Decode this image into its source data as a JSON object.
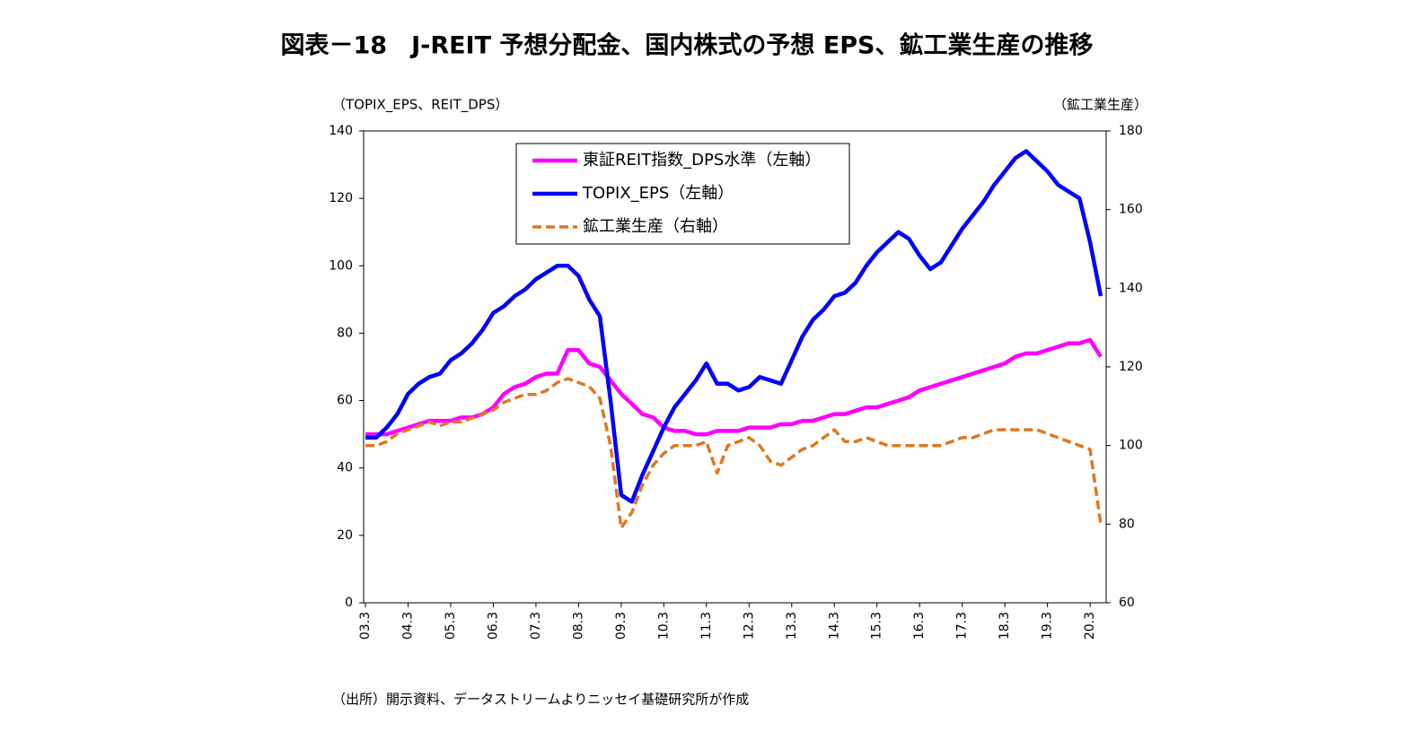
{
  "chart_data": {
    "type": "line",
    "title": "図表－18　J-REIT 予想分配金、国内株式の予想 EPS、鉱工業生産の推移",
    "y_label": "（TOPIX_EPS、REIT_DPS）",
    "y2_label": "（鉱工業生産）",
    "note": "（出所）開示資料、データストリームよりニッセイ基礎研究所が作成",
    "categories": [
      "03.3",
      null,
      null,
      null,
      "04.3",
      null,
      null,
      null,
      "05.3",
      null,
      null,
      null,
      "06.3",
      null,
      null,
      null,
      "07.3",
      null,
      null,
      null,
      "08.3",
      null,
      null,
      null,
      "09.3",
      null,
      null,
      null,
      "10.3",
      null,
      null,
      null,
      "11.3",
      null,
      null,
      null,
      "12.3",
      null,
      null,
      null,
      "13.3",
      null,
      null,
      null,
      "14.3",
      null,
      null,
      null,
      "15.3",
      null,
      null,
      null,
      "16.3",
      null,
      null,
      null,
      "17.3",
      null,
      null,
      null,
      "18.3",
      null,
      null,
      null,
      "19.3",
      null,
      null,
      null,
      "20.3",
      null
    ],
    "ylim": [
      0,
      140
    ],
    "yticks": [
      0,
      20,
      40,
      60,
      80,
      100,
      120,
      140
    ],
    "y2lim": [
      60,
      180
    ],
    "y2ticks": [
      60,
      80,
      100,
      120,
      140,
      160,
      180
    ],
    "legend": "upper center",
    "series": [
      {
        "name": "東証REIT指数_DPS水準（左軸）",
        "color": "#ff00ff",
        "line_style": "solid",
        "values": [
          50,
          50,
          50,
          51,
          52,
          53,
          54,
          54,
          54,
          55,
          55,
          56,
          58,
          62,
          64,
          65,
          67,
          68,
          68,
          75,
          75,
          71,
          70,
          66,
          62,
          59,
          56,
          55,
          52,
          51,
          51,
          50,
          50,
          51,
          51,
          51,
          52,
          52,
          52,
          53,
          53,
          54,
          54,
          55,
          56,
          56,
          57,
          58,
          58,
          59,
          60,
          61,
          63,
          64,
          65,
          66,
          67,
          68,
          69,
          70,
          71,
          73,
          74,
          74,
          75,
          76,
          77,
          77,
          78,
          73
        ]
      },
      {
        "name": "TOPIX_EPS（左軸）",
        "color": "#0000ff",
        "line_style": "solid",
        "values": [
          49,
          49,
          52,
          56,
          62,
          65,
          67,
          68,
          72,
          74,
          77,
          81,
          86,
          88,
          91,
          93,
          96,
          98,
          100,
          100,
          97,
          90,
          85,
          60,
          32,
          30,
          38,
          45,
          52,
          58,
          62,
          66,
          71,
          65,
          65,
          63,
          64,
          67,
          66,
          65,
          72,
          79,
          84,
          87,
          91,
          92,
          95,
          100,
          104,
          107,
          110,
          108,
          103,
          99,
          101,
          106,
          111,
          115,
          119,
          124,
          128,
          132,
          134,
          131,
          128,
          124,
          122,
          120,
          107,
          91
        ]
      },
      {
        "name": "鉱工業生産（右軸）",
        "color": "#e07820",
        "line_style": "dashed",
        "axis": "y2",
        "values": [
          100,
          100,
          101,
          103,
          104,
          105,
          106,
          105,
          106,
          106,
          107,
          108,
          109,
          111,
          112,
          113,
          113,
          114,
          116,
          117,
          116,
          115,
          112,
          100,
          79,
          83,
          90,
          95,
          98,
          100,
          100,
          100,
          101,
          93,
          100,
          101,
          102,
          100,
          96,
          95,
          97,
          99,
          100,
          102,
          104,
          101,
          101,
          102,
          101,
          100,
          100,
          100,
          100,
          100,
          100,
          101,
          102,
          102,
          103,
          104,
          104,
          104,
          104,
          104,
          103,
          102,
          101,
          100,
          99,
          80
        ]
      }
    ]
  }
}
